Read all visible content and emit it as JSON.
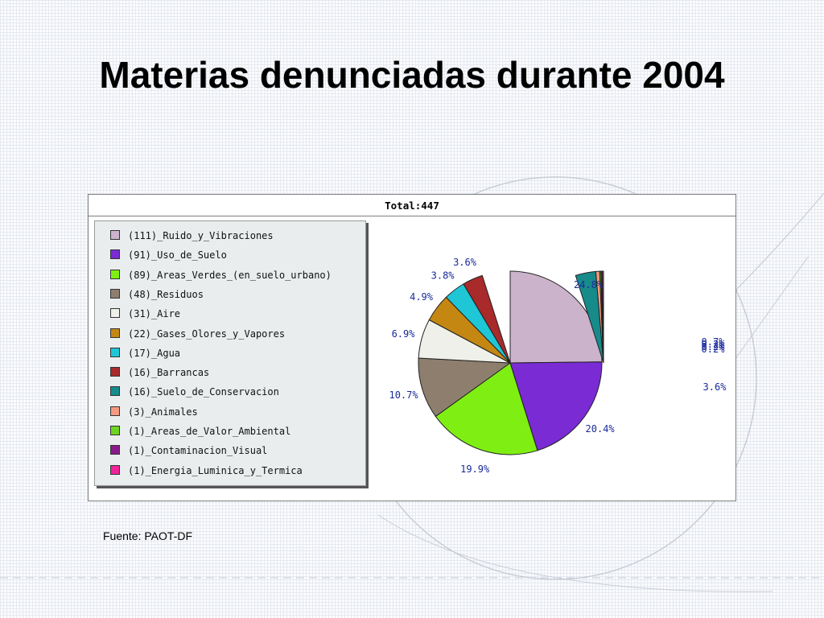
{
  "title": "Materias denunciadas durante 2004",
  "source": "Fuente: PAOT-DF",
  "chart_data": {
    "type": "pie",
    "title": "Total:447",
    "total": 447,
    "slices": [
      {
        "label": "(111)_Ruido_y_Vibraciones",
        "value": 111,
        "percent_label": "24.8%",
        "color": "#cbb3cb"
      },
      {
        "label": "(91)_Uso_de_Suelo",
        "value": 91,
        "percent_label": "20.4%",
        "color": "#7a2bd4"
      },
      {
        "label": "(89)_Areas_Verdes_(en_suelo_urbano)",
        "value": 89,
        "percent_label": "19.9%",
        "color": "#7fef13"
      },
      {
        "label": "(48)_Residuos",
        "value": 48,
        "percent_label": "10.7%",
        "color": "#8e7e6e"
      },
      {
        "label": "(31)_Aire",
        "value": 31,
        "percent_label": "6.9%",
        "color": "#f0f0ea"
      },
      {
        "label": "(22)_Gases_Olores_y_Vapores",
        "value": 22,
        "percent_label": "4.9%",
        "color": "#c48712"
      },
      {
        "label": "(17)_Agua",
        "value": 17,
        "percent_label": "3.8%",
        "color": "#1fc6d6"
      },
      {
        "label": "(16)_Barrancas",
        "value": 16,
        "percent_label": "3.6%",
        "color": "#a82a2a"
      },
      {
        "label": "(16)_Suelo_de_Conservacion",
        "value": 16,
        "percent_label": "3.6%",
        "color": "#178a8a"
      },
      {
        "label": "(3)_Animales",
        "value": 3,
        "percent_label": "0.7%",
        "color": "#f59a80"
      },
      {
        "label": "(1)_Areas_de_Valor_Ambiental",
        "value": 1,
        "percent_label": "0.2%",
        "color": "#6fd41f"
      },
      {
        "label": "(1)_Contaminacion_Visual",
        "value": 1,
        "percent_label": "0.2%",
        "color": "#8a1a8a"
      },
      {
        "label": "(1)_Energia_Luminica_y_Termica",
        "value": 1,
        "percent_label": "0.2%",
        "color": "#f0239a"
      }
    ],
    "legend_position": "left"
  }
}
